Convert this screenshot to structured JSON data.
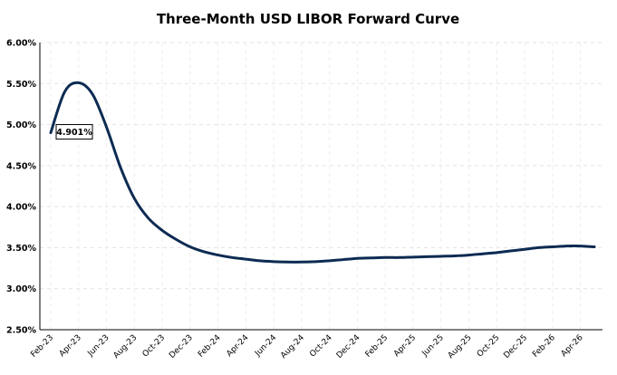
{
  "chart_data": {
    "type": "line",
    "title": "Three-Month USD LIBOR Forward Curve",
    "xlabel": "",
    "ylabel": "",
    "ylim": [
      2.5,
      6.0
    ],
    "ytick_values": [
      2.5,
      3.0,
      3.5,
      4.0,
      4.5,
      5.0,
      5.5,
      6.0
    ],
    "ytick_labels": [
      "2.50%",
      "3.00%",
      "3.50%",
      "4.00%",
      "4.50%",
      "5.00%",
      "5.50%",
      "6.00%"
    ],
    "xtick_labels": [
      "Feb-23",
      "Apr-23",
      "Jun-23",
      "Aug-23",
      "Oct-23",
      "Dec-23",
      "Feb-24",
      "Apr-24",
      "Jun-24",
      "Aug-24",
      "Oct-24",
      "Dec-24",
      "Feb-25",
      "Apr-25",
      "Jun-25",
      "Aug-25",
      "Oct-25",
      "Dec-25",
      "Feb-26",
      "Apr-26"
    ],
    "grid": true,
    "line_color": "#0d2b52",
    "series": [
      {
        "x": [
          "Feb-23",
          "Mar-23",
          "Apr-23",
          "May-23",
          "Jun-23",
          "Jul-23",
          "Aug-23",
          "Sep-23",
          "Oct-23",
          "Nov-23",
          "Dec-23",
          "Jan-24",
          "Feb-24",
          "Mar-24",
          "Apr-24",
          "May-24",
          "Jun-24",
          "Jul-24",
          "Aug-24",
          "Sep-24",
          "Oct-24",
          "Nov-24",
          "Dec-24",
          "Jan-25",
          "Feb-25",
          "Mar-25",
          "Apr-25",
          "May-25",
          "Jun-25",
          "Jul-25",
          "Aug-25",
          "Sep-25",
          "Oct-25",
          "Nov-25",
          "Dec-25",
          "Jan-26",
          "Feb-26",
          "Mar-26",
          "Apr-26",
          "May-26"
        ],
        "values": [
          4.901,
          5.4,
          5.51,
          5.37,
          4.97,
          4.48,
          4.1,
          3.86,
          3.71,
          3.6,
          3.51,
          3.45,
          3.41,
          3.38,
          3.36,
          3.34,
          3.33,
          3.325,
          3.325,
          3.33,
          3.34,
          3.355,
          3.37,
          3.375,
          3.38,
          3.38,
          3.385,
          3.39,
          3.395,
          3.4,
          3.41,
          3.425,
          3.44,
          3.46,
          3.48,
          3.5,
          3.51,
          3.52,
          3.52,
          3.51
        ]
      }
    ],
    "annotation": {
      "text": "4.901%",
      "point_index": 0
    }
  }
}
